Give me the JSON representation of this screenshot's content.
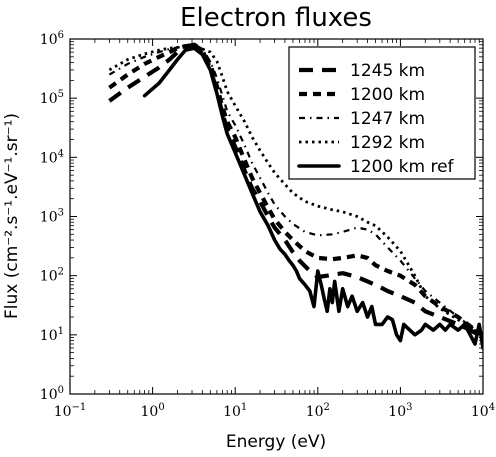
{
  "chart_data": {
    "type": "line",
    "title": "Electron fluxes",
    "xlabel": "Energy (eV)",
    "ylabel": "Flux (cm⁻².s⁻¹.eV⁻¹.sr⁻¹)",
    "x_scale": "log",
    "y_scale": "log",
    "xlim": [
      0.1,
      10000
    ],
    "ylim": [
      1,
      1000000
    ],
    "x_ticks": [
      {
        "value": 0.1,
        "base": "10",
        "exp": "−1"
      },
      {
        "value": 1,
        "base": "10",
        "exp": "0"
      },
      {
        "value": 10,
        "base": "10",
        "exp": "1"
      },
      {
        "value": 100,
        "base": "10",
        "exp": "2"
      },
      {
        "value": 1000,
        "base": "10",
        "exp": "3"
      },
      {
        "value": 10000,
        "base": "10",
        "exp": "4"
      }
    ],
    "y_ticks": [
      {
        "value": 1,
        "base": "10",
        "exp": "0"
      },
      {
        "value": 10,
        "base": "10",
        "exp": "1"
      },
      {
        "value": 100,
        "base": "10",
        "exp": "2"
      },
      {
        "value": 1000,
        "base": "10",
        "exp": "3"
      },
      {
        "value": 10000,
        "base": "10",
        "exp": "4"
      },
      {
        "value": 100000,
        "base": "10",
        "exp": "5"
      },
      {
        "value": 1000000,
        "base": "10",
        "exp": "6"
      }
    ],
    "grid": false,
    "legend_position": "top-right",
    "series": [
      {
        "name": "1245 km",
        "style": "dashed",
        "x": [
          0.3,
          0.5,
          0.8,
          1.2,
          1.6,
          2.0,
          2.5,
          3.2,
          4.0,
          5.0,
          6.0,
          7.0,
          8.0,
          10,
          13,
          16,
          20,
          25,
          30,
          40,
          50,
          60,
          80,
          100,
          130,
          160,
          200,
          300,
          400,
          500,
          700,
          1000,
          1500,
          2000,
          3000,
          5000,
          7000,
          10000
        ],
        "y": [
          90000,
          150000,
          230000,
          330000,
          450000,
          600000,
          750000,
          800000,
          650000,
          320000,
          130000,
          55000,
          30000,
          15000,
          6000,
          3000,
          1800,
          1000,
          650,
          400,
          250,
          180,
          120,
          95,
          100,
          105,
          110,
          95,
          80,
          70,
          55,
          45,
          35,
          25,
          20,
          15,
          12,
          9
        ]
      },
      {
        "name": "1200 km",
        "style": "dashed-heavy",
        "x": [
          0.3,
          0.5,
          0.8,
          1.2,
          1.6,
          2.0,
          2.5,
          3.2,
          4.0,
          5.0,
          6.0,
          7.0,
          8.0,
          10,
          13,
          16,
          20,
          25,
          30,
          40,
          50,
          70,
          100,
          150,
          200,
          300,
          400,
          500,
          700,
          1000,
          1500,
          2000,
          3000,
          5000,
          7000,
          10000
        ],
        "y": [
          150000,
          250000,
          380000,
          500000,
          600000,
          700000,
          760000,
          780000,
          650000,
          380000,
          160000,
          70000,
          40000,
          22000,
          9000,
          4500,
          2500,
          1400,
          900,
          550,
          400,
          260,
          200,
          190,
          200,
          220,
          200,
          150,
          120,
          100,
          70,
          45,
          30,
          20,
          14,
          10
        ]
      },
      {
        "name": "1247 km",
        "style": "dashdot",
        "x": [
          0.3,
          0.5,
          0.8,
          1.2,
          1.6,
          2.0,
          2.5,
          3.2,
          4.0,
          5.0,
          6.0,
          7.0,
          8.0,
          10,
          13,
          16,
          20,
          25,
          30,
          40,
          50,
          70,
          100,
          150,
          200,
          300,
          400,
          500,
          700,
          1000,
          1500,
          2000,
          3000,
          5000,
          7000,
          10000
        ],
        "y": [
          250000,
          380000,
          500000,
          600000,
          680000,
          720000,
          740000,
          700000,
          600000,
          420000,
          220000,
          110000,
          60000,
          35000,
          16000,
          8000,
          4500,
          2500,
          1600,
          1000,
          750,
          550,
          480,
          500,
          550,
          650,
          600,
          500,
          300,
          180,
          90,
          55,
          35,
          20,
          14,
          10
        ]
      },
      {
        "name": "1292 km",
        "style": "dotted",
        "x": [
          0.3,
          0.5,
          0.8,
          1.2,
          1.6,
          2.0,
          2.5,
          3.2,
          4.0,
          5.0,
          6.0,
          7.0,
          8.0,
          10,
          13,
          16,
          20,
          25,
          30,
          40,
          50,
          70,
          100,
          150,
          200,
          300,
          400,
          500,
          700,
          1000,
          1500,
          2000,
          3000,
          5000,
          7000,
          10000
        ],
        "y": [
          300000,
          450000,
          560000,
          650000,
          700000,
          720000,
          730000,
          720000,
          680000,
          600000,
          420000,
          230000,
          130000,
          75000,
          40000,
          22000,
          13000,
          8000,
          5500,
          3500,
          2500,
          1800,
          1500,
          1300,
          1200,
          1000,
          800,
          700,
          450,
          260,
          100,
          45,
          28,
          18,
          13,
          10
        ]
      },
      {
        "name": "1200 km ref",
        "style": "solid",
        "x": [
          0.8,
          1.2,
          1.6,
          2.0,
          2.5,
          3.2,
          4.0,
          5.0,
          6.0,
          7.0,
          8.0,
          10,
          13,
          16,
          20,
          25,
          30,
          35,
          40,
          45,
          50,
          55,
          60,
          70,
          80,
          90,
          100,
          110,
          120,
          130,
          140,
          150,
          160,
          180,
          200,
          230,
          260,
          300,
          350,
          400,
          450,
          500,
          600,
          700,
          800,
          900,
          1000,
          1100,
          1300,
          1500,
          1800,
          2000,
          2500,
          3000,
          3500,
          4000,
          5000,
          6000,
          7000,
          8000,
          9000,
          10000
        ],
        "y": [
          110000,
          180000,
          300000,
          450000,
          650000,
          700000,
          550000,
          300000,
          120000,
          50000,
          25000,
          12000,
          5000,
          2500,
          1200,
          700,
          400,
          280,
          230,
          180,
          150,
          120,
          90,
          70,
          55,
          30,
          120,
          70,
          40,
          25,
          60,
          35,
          80,
          25,
          60,
          30,
          45,
          25,
          35,
          20,
          30,
          15,
          15,
          20,
          18,
          10,
          8,
          15,
          12,
          10,
          12,
          15,
          12,
          15,
          12,
          15,
          12,
          15,
          10,
          7,
          15,
          6
        ]
      }
    ]
  }
}
